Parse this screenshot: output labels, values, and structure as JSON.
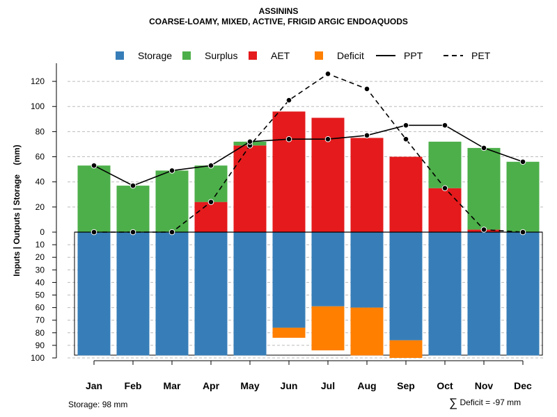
{
  "header": {
    "title": "ASSININS",
    "subtitle": "COARSE-LOAMY, MIXED, ACTIVE, FRIGID ARGIC ENDOAQUODS"
  },
  "colors": {
    "storage": "#377EB8",
    "surplus": "#4DAF4A",
    "aet": "#E41A1C",
    "deficit": "#FF7F00",
    "line": "#000000",
    "grid": "#BBBBBB"
  },
  "chart_data": {
    "type": "bar",
    "ylabel": "Inputs | Outputs | Storage    (mm)",
    "categories": [
      "Jan",
      "Feb",
      "Mar",
      "Apr",
      "May",
      "Jun",
      "Jul",
      "Aug",
      "Sep",
      "Oct",
      "Nov",
      "Dec"
    ],
    "upper_ylim": [
      0,
      130
    ],
    "upper_ticks": [
      0,
      20,
      40,
      60,
      80,
      100,
      120
    ],
    "lower_ylim": [
      0,
      100
    ],
    "lower_ticks": [
      10,
      20,
      30,
      40,
      50,
      60,
      70,
      80,
      90,
      100
    ],
    "grid": true,
    "legend": [
      "Storage",
      "Surplus",
      "AET",
      "Deficit",
      "PPT",
      "PET"
    ],
    "series": [
      {
        "name": "AET",
        "values": [
          0,
          0,
          0,
          24,
          69,
          96,
          91,
          75,
          60,
          35,
          2,
          0
        ]
      },
      {
        "name": "Surplus",
        "values": [
          53,
          37,
          49,
          29,
          3,
          0,
          0,
          0,
          0,
          37,
          65,
          56
        ]
      },
      {
        "name": "Storage",
        "values": [
          98,
          98,
          98,
          98,
          98,
          76,
          59,
          60,
          86,
          98,
          98,
          98
        ]
      },
      {
        "name": "Deficit",
        "values": [
          0,
          0,
          0,
          0,
          0,
          8,
          35,
          38,
          14,
          0,
          0,
          0
        ]
      },
      {
        "name": "PPT",
        "values": [
          53,
          37,
          49,
          53,
          72,
          74,
          74,
          77,
          85,
          85,
          67,
          56
        ]
      },
      {
        "name": "PET",
        "values": [
          0,
          0,
          0,
          24,
          69,
          105,
          126,
          114,
          74,
          35,
          2,
          0
        ]
      }
    ]
  },
  "footer": {
    "storage_note": "Storage: 98 mm",
    "deficit_sigma": "∑",
    "deficit_note": "Deficit = -97 mm"
  }
}
